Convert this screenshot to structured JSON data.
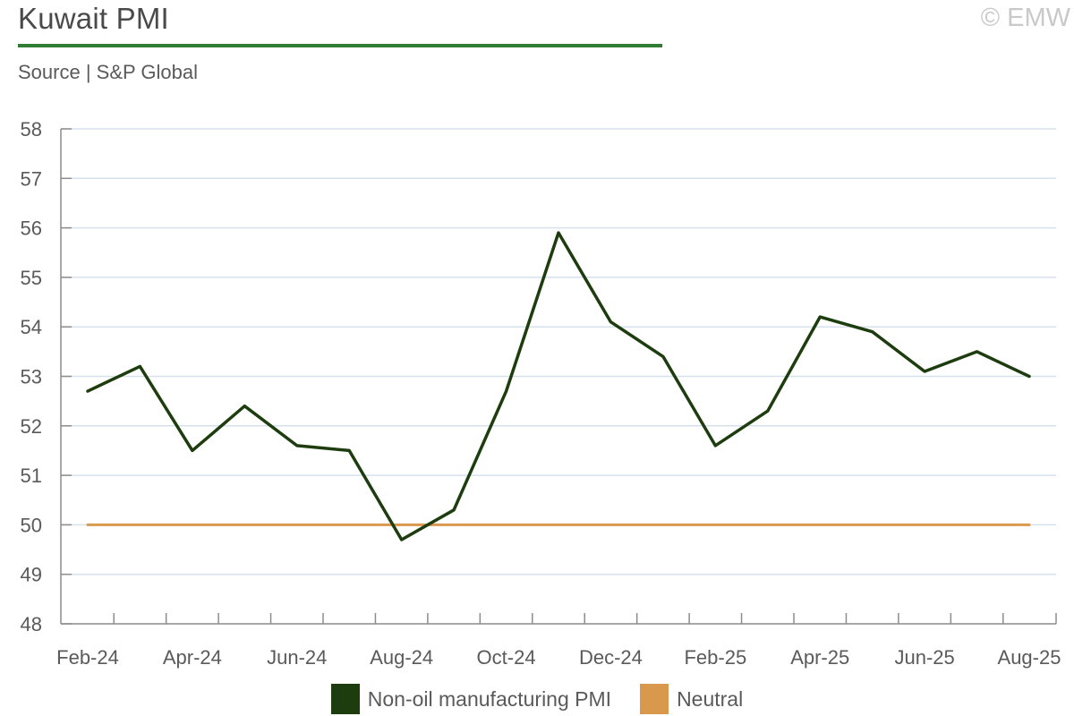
{
  "header": {
    "title": "Kuwait PMI",
    "subtitle": "Source | S&P Global",
    "copyright": "© EMW"
  },
  "colors": {
    "title_rule": "#2e7d32",
    "pmi_line": "#1e3d0f",
    "neutral_line": "#d9994d",
    "grid": "#d6e1ee",
    "axis": "#8c8c8c"
  },
  "chart_data": {
    "type": "line",
    "x": [
      "Feb-24",
      "Mar-24",
      "Apr-24",
      "May-24",
      "Jun-24",
      "Jul-24",
      "Aug-24",
      "Sep-24",
      "Oct-24",
      "Nov-24",
      "Dec-24",
      "Jan-25",
      "Feb-25",
      "Mar-25",
      "Apr-25",
      "May-25",
      "Jun-25",
      "Jul-25",
      "Aug-25"
    ],
    "x_tick_labels": [
      "Feb-24",
      "Apr-24",
      "Jun-24",
      "Aug-24",
      "Oct-24",
      "Dec-24",
      "Feb-25",
      "Apr-25",
      "Jun-25",
      "Aug-25"
    ],
    "y_ticks": [
      "58",
      "57",
      "56",
      "55",
      "54",
      "53",
      "52",
      "51",
      "50",
      "49",
      "48"
    ],
    "ylim": [
      48,
      58
    ],
    "grid": true,
    "legend_position": "bottom",
    "series": [
      {
        "name": "Non-oil manufacturing PMI",
        "values": [
          52.7,
          53.2,
          51.5,
          52.4,
          51.6,
          51.5,
          49.7,
          50.3,
          52.7,
          55.9,
          54.1,
          53.4,
          51.6,
          52.3,
          54.2,
          53.9,
          53.1,
          53.5,
          53.0
        ]
      },
      {
        "name": "Neutral",
        "values": [
          50,
          50,
          50,
          50,
          50,
          50,
          50,
          50,
          50,
          50,
          50,
          50,
          50,
          50,
          50,
          50,
          50,
          50,
          50
        ]
      }
    ]
  }
}
